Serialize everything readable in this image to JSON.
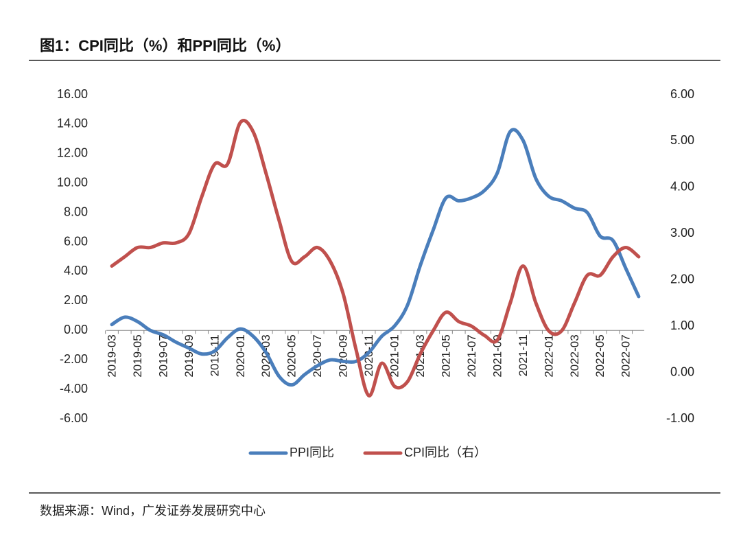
{
  "chart_data": {
    "type": "line",
    "title": "图1：CPI同比（%）和PPI同比（%）",
    "source": "数据来源：Wind，广发证券发展研究中心",
    "categories": [
      "2019-03",
      null,
      "2019-05",
      null,
      "2019-07",
      null,
      "2019-09",
      null,
      "2019-11",
      null,
      "2020-01",
      null,
      "2020-03",
      null,
      "2020-05",
      null,
      "2020-07",
      null,
      "2020-09",
      null,
      "2020-11",
      null,
      "2021-01",
      null,
      "2021-03",
      null,
      "2021-05",
      null,
      "2021-07",
      null,
      "2021-09",
      null,
      "2021-11",
      null,
      "2022-01",
      null,
      "2022-03",
      null,
      "2022-05",
      null,
      "2022-07",
      null
    ],
    "series": [
      {
        "name": "PPI同比",
        "color": "#4a7ebb",
        "values": [
          0.4,
          0.9,
          0.6,
          0.0,
          -0.3,
          -0.8,
          -1.2,
          -1.6,
          -1.4,
          -0.5,
          0.1,
          -0.4,
          -1.5,
          -3.1,
          -3.7,
          -3.0,
          -2.4,
          -2.0,
          -2.1,
          -2.1,
          -1.5,
          -0.4,
          0.3,
          1.7,
          4.4,
          6.8,
          9.0,
          8.8,
          9.0,
          9.5,
          10.7,
          13.5,
          12.9,
          10.3,
          9.1,
          8.8,
          8.3,
          8.0,
          6.4,
          6.1,
          4.2,
          2.3
        ]
      },
      {
        "name": "CPI同比（右）",
        "color": "#c0504d",
        "axis": "y2",
        "values": [
          2.3,
          2.5,
          2.7,
          2.7,
          2.8,
          2.8,
          3.0,
          3.8,
          4.5,
          4.5,
          5.4,
          5.2,
          4.3,
          3.3,
          2.4,
          2.5,
          2.7,
          2.4,
          1.7,
          0.5,
          -0.5,
          0.2,
          -0.3,
          -0.2,
          0.4,
          0.9,
          1.3,
          1.1,
          1.0,
          0.8,
          0.7,
          1.5,
          2.3,
          1.5,
          0.9,
          0.9,
          1.5,
          2.1,
          2.1,
          2.5,
          2.7,
          2.5
        ]
      }
    ],
    "ylim": [
      -6,
      16
    ],
    "yticks": [
      {
        "value": -6,
        "label": "-6.00"
      },
      {
        "value": -4,
        "label": "-4.00"
      },
      {
        "value": -2,
        "label": "-2.00"
      },
      {
        "value": 0,
        "label": "0.00"
      },
      {
        "value": 2,
        "label": "2.00"
      },
      {
        "value": 4,
        "label": "4.00"
      },
      {
        "value": 6,
        "label": "6.00"
      },
      {
        "value": 8,
        "label": "8.00"
      },
      {
        "value": 10,
        "label": "10.00"
      },
      {
        "value": 12,
        "label": "12.00"
      },
      {
        "value": 14,
        "label": "14.00"
      },
      {
        "value": 16,
        "label": "16.00"
      }
    ],
    "y2lim": [
      -1,
      6
    ],
    "y2ticks": [
      {
        "value": -1,
        "label": "-1.00"
      },
      {
        "value": 0,
        "label": "0.00"
      },
      {
        "value": 1,
        "label": "1.00"
      },
      {
        "value": 2,
        "label": "2.00"
      },
      {
        "value": 3,
        "label": "3.00"
      },
      {
        "value": 4,
        "label": "4.00"
      },
      {
        "value": 5,
        "label": "5.00"
      },
      {
        "value": 6,
        "label": "6.00"
      }
    ],
    "legend": "bottom"
  }
}
